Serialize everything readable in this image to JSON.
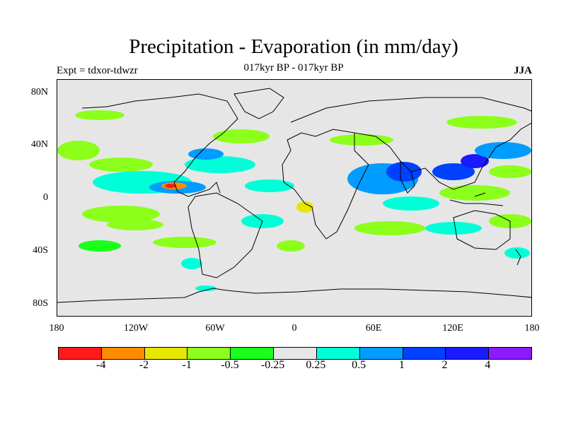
{
  "title": "Precipitation - Evaporation (in mm/day)",
  "subtitle": "017kyr BP - 017kyr BP",
  "experiment": "Expt = tdxor-tdwzr",
  "season": "JJA",
  "lat_labels": [
    "80N",
    "40N",
    "0",
    "40S",
    "80S"
  ],
  "lon_labels": [
    "180",
    "120W",
    "60W",
    "0",
    "60E",
    "120E",
    "180"
  ],
  "colorbar": {
    "colors": [
      "#ff1a1a",
      "#ff8c00",
      "#e6e600",
      "#8cff1a",
      "#1aff1a",
      "#e6e6e6",
      "#00ffd9",
      "#009cff",
      "#0040ff",
      "#1a1aff",
      "#8c1aff"
    ],
    "labels": [
      "-4",
      "-2",
      "-1",
      "-0.5",
      "-0.25",
      "0.25",
      "0.5",
      "1",
      "2",
      "4"
    ]
  },
  "colors": {
    "background": "#e6e6e6",
    "coast": "#000000"
  }
}
